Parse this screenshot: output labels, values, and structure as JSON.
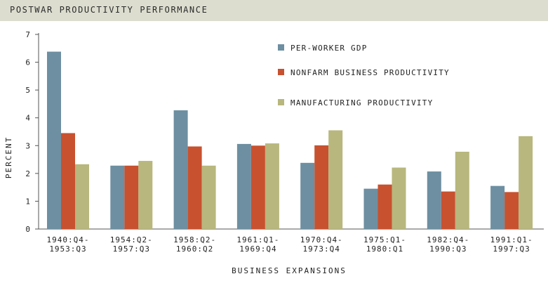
{
  "title": "POSTWAR PRODUCTIVITY PERFORMANCE",
  "chart_data": {
    "type": "bar",
    "title": "POSTWAR PRODUCTIVITY PERFORMANCE",
    "xlabel": "BUSINESS EXPANSIONS",
    "ylabel": "PERCENT",
    "ylim": [
      0,
      7
    ],
    "yticks": [
      0,
      1,
      2,
      3,
      4,
      5,
      6,
      7
    ],
    "grid": false,
    "legend_position": "top-right",
    "categories": [
      [
        "1940:Q4-",
        "1953:Q3"
      ],
      [
        "1954:Q2-",
        "1957:Q3"
      ],
      [
        "1958:Q2-",
        "1960:Q2"
      ],
      [
        "1961:Q1-",
        "1969:Q4"
      ],
      [
        "1970:Q4-",
        "1973:Q4"
      ],
      [
        "1975:Q1-",
        "1980:Q1"
      ],
      [
        "1982:Q4-",
        "1990:Q3"
      ],
      [
        "1991:Q1-",
        "1997:Q3"
      ]
    ],
    "series": [
      {
        "name": "PER-WORKER GDP",
        "color": "#6d8fa1",
        "values": [
          6.38,
          2.28,
          4.27,
          3.06,
          2.38,
          1.45,
          2.07,
          1.55
        ]
      },
      {
        "name": "NONFARM BUSINESS PRODUCTIVITY",
        "color": "#c8512f",
        "values": [
          3.45,
          2.28,
          2.97,
          3.0,
          3.01,
          1.6,
          1.35,
          1.33
        ]
      },
      {
        "name": "MANUFACTURING PRODUCTIVITY",
        "color": "#b8b77d",
        "values": [
          2.33,
          2.45,
          2.28,
          3.08,
          3.55,
          2.21,
          2.78,
          3.34
        ]
      }
    ]
  }
}
